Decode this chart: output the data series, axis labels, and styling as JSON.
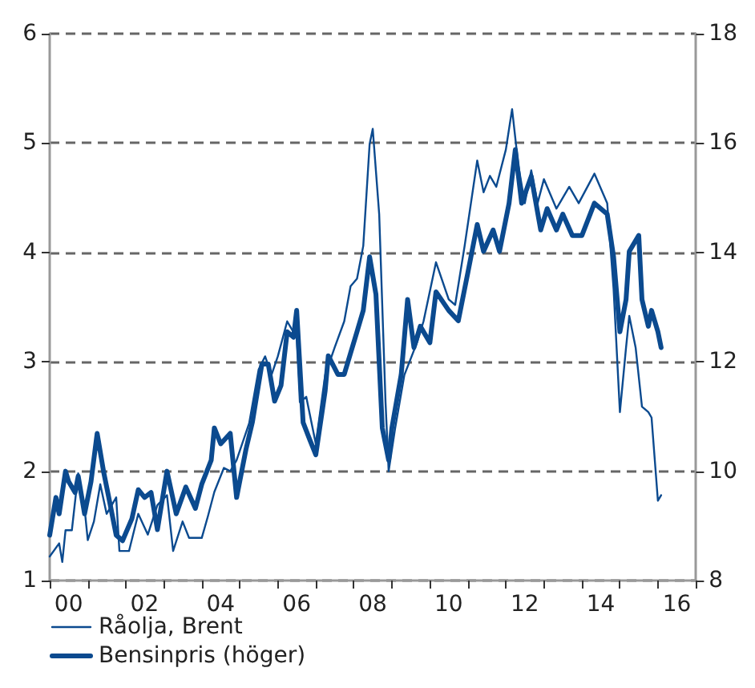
{
  "chart_data": {
    "type": "line",
    "xlim": [
      "2000-01",
      "2017-01"
    ],
    "xticks": [
      {
        "value": "2000-01",
        "label": null
      },
      {
        "value": "2000-07",
        "label": "00"
      },
      {
        "value": "2001-01",
        "label": null
      },
      {
        "value": "2002-01",
        "label": null
      },
      {
        "value": "2002-07",
        "label": "02"
      },
      {
        "value": "2003-01",
        "label": null
      },
      {
        "value": "2004-01",
        "label": null
      },
      {
        "value": "2004-07",
        "label": "04"
      },
      {
        "value": "2005-01",
        "label": null
      },
      {
        "value": "2006-01",
        "label": null
      },
      {
        "value": "2006-07",
        "label": "06"
      },
      {
        "value": "2007-01",
        "label": null
      },
      {
        "value": "2008-01",
        "label": null
      },
      {
        "value": "2008-07",
        "label": "08"
      },
      {
        "value": "2009-01",
        "label": null
      },
      {
        "value": "2010-01",
        "label": null
      },
      {
        "value": "2010-07",
        "label": "10"
      },
      {
        "value": "2011-01",
        "label": null
      },
      {
        "value": "2012-01",
        "label": null
      },
      {
        "value": "2012-07",
        "label": "12"
      },
      {
        "value": "2013-01",
        "label": null
      },
      {
        "value": "2014-01",
        "label": null
      },
      {
        "value": "2014-07",
        "label": "14"
      },
      {
        "value": "2015-01",
        "label": null
      },
      {
        "value": "2016-01",
        "label": null
      },
      {
        "value": "2016-07",
        "label": "16"
      },
      {
        "value": "2017-01",
        "label": null
      }
    ],
    "ylim": [
      1,
      6
    ],
    "yticks": [
      1,
      2,
      3,
      4,
      5,
      6
    ],
    "y2lim": [
      8,
      18
    ],
    "y2ticks": [
      8,
      10,
      12,
      14,
      16,
      18
    ],
    "grid": "y",
    "legend": "bottom left",
    "marker": "none",
    "line_style": "solid",
    "series": [
      {
        "name": "Råolja, Brent",
        "color": "#0b4a8f",
        "x": [
          "2000-01",
          "2000-04",
          "2000-05",
          "2000-06",
          "2000-08",
          "2000-10",
          "2000-12",
          "2001-01",
          "2001-03",
          "2001-05",
          "2001-07",
          "2001-10",
          "2001-11",
          "2002-02",
          "2002-05",
          "2002-08",
          "2002-11",
          "2003-02",
          "2003-04",
          "2003-07",
          "2003-09",
          "2004-01",
          "2004-03",
          "2004-05",
          "2004-08",
          "2004-10",
          "2004-12",
          "2005-04",
          "2005-07",
          "2005-09",
          "2005-11",
          "2006-01",
          "2006-04",
          "2006-07",
          "2006-08",
          "2006-10",
          "2007-01",
          "2007-04",
          "2007-07",
          "2007-10",
          "2007-12",
          "2008-02",
          "2008-04",
          "2008-06",
          "2008-07",
          "2008-09",
          "2008-11",
          "2008-12",
          "2009-02",
          "2009-05",
          "2009-09",
          "2009-11",
          "2010-03",
          "2010-07",
          "2010-09",
          "2010-12",
          "2011-04",
          "2011-06",
          "2011-08",
          "2011-10",
          "2012-01",
          "2012-03",
          "2012-05",
          "2012-07",
          "2012-09",
          "2012-11",
          "2013-01",
          "2013-05",
          "2013-09",
          "2013-12",
          "2014-05",
          "2014-09",
          "2014-11",
          "2015-01",
          "2015-03",
          "2015-04",
          "2015-06",
          "2015-08",
          "2015-10",
          "2015-11",
          "2016-01",
          "2016-02"
        ],
        "values": [
          1.22,
          1.34,
          1.17,
          1.46,
          1.46,
          1.98,
          1.66,
          1.37,
          1.54,
          1.88,
          1.61,
          1.76,
          1.27,
          1.27,
          1.61,
          1.42,
          1.69,
          1.78,
          1.27,
          1.54,
          1.39,
          1.39,
          1.59,
          1.81,
          2.03,
          2.0,
          2.1,
          2.44,
          2.93,
          3.05,
          2.88,
          3.05,
          3.37,
          3.22,
          2.63,
          2.68,
          2.25,
          2.88,
          3.13,
          3.37,
          3.69,
          3.76,
          4.06,
          4.99,
          5.13,
          4.35,
          2.63,
          2.0,
          2.39,
          2.88,
          3.18,
          3.37,
          3.91,
          3.57,
          3.52,
          4.06,
          4.84,
          4.55,
          4.7,
          4.6,
          4.94,
          5.31,
          4.79,
          4.45,
          4.75,
          4.45,
          4.67,
          4.4,
          4.6,
          4.45,
          4.72,
          4.45,
          3.67,
          2.54,
          3.13,
          3.42,
          3.13,
          2.59,
          2.54,
          2.49,
          1.73,
          1.78
        ]
      },
      {
        "name": "Bensinpris (höger)",
        "color": "#0b4a8f",
        "axis": "y2",
        "x": [
          "2000-01",
          "2000-03",
          "2000-04",
          "2000-06",
          "2000-07",
          "2000-09",
          "2000-10",
          "2000-12",
          "2001-02",
          "2001-04",
          "2001-06",
          "2001-08",
          "2001-10",
          "2001-12",
          "2002-03",
          "2002-05",
          "2002-07",
          "2002-09",
          "2002-11",
          "2003-02",
          "2003-05",
          "2003-08",
          "2003-11",
          "2004-01",
          "2004-04",
          "2004-05",
          "2004-07",
          "2004-10",
          "2004-12",
          "2005-03",
          "2005-05",
          "2005-08",
          "2005-10",
          "2005-12",
          "2006-02",
          "2006-04",
          "2006-06",
          "2006-07",
          "2006-09",
          "2006-11",
          "2007-01",
          "2007-04",
          "2007-05",
          "2007-08",
          "2007-10",
          "2007-12",
          "2008-02",
          "2008-04",
          "2008-06",
          "2008-08",
          "2008-10",
          "2008-12",
          "2009-01",
          "2009-04",
          "2009-06",
          "2009-08",
          "2009-10",
          "2010-01",
          "2010-03",
          "2010-07",
          "2010-10",
          "2011-01",
          "2011-04",
          "2011-06",
          "2011-09",
          "2011-11",
          "2012-02",
          "2012-04",
          "2012-06",
          "2012-09",
          "2012-12",
          "2013-02",
          "2013-05",
          "2013-07",
          "2013-10",
          "2014-01",
          "2014-05",
          "2014-09",
          "2014-11",
          "2015-01",
          "2015-03",
          "2015-04",
          "2015-07",
          "2015-08",
          "2015-10",
          "2015-11",
          "2016-01",
          "2016-02"
        ],
        "values": [
          8.83,
          9.52,
          9.22,
          10.0,
          9.81,
          9.61,
          9.91,
          9.22,
          9.81,
          10.69,
          10.0,
          9.42,
          8.83,
          8.73,
          9.13,
          9.66,
          9.52,
          9.61,
          8.93,
          10.0,
          9.22,
          9.71,
          9.32,
          9.76,
          10.2,
          10.79,
          10.5,
          10.69,
          9.52,
          10.4,
          10.89,
          11.96,
          11.96,
          11.28,
          11.57,
          12.55,
          12.45,
          12.94,
          10.89,
          10.59,
          10.3,
          11.47,
          12.11,
          11.77,
          11.77,
          12.16,
          12.55,
          12.94,
          13.92,
          13.23,
          10.79,
          10.2,
          10.79,
          11.77,
          13.14,
          12.26,
          12.65,
          12.35,
          13.28,
          12.94,
          12.75,
          13.63,
          14.51,
          14.02,
          14.41,
          14.02,
          14.9,
          15.88,
          14.9,
          15.39,
          14.41,
          14.8,
          14.41,
          14.7,
          14.31,
          14.31,
          14.9,
          14.7,
          13.92,
          12.55,
          13.14,
          14.02,
          14.31,
          13.14,
          12.65,
          12.94,
          12.55,
          12.26
        ]
      }
    ]
  }
}
